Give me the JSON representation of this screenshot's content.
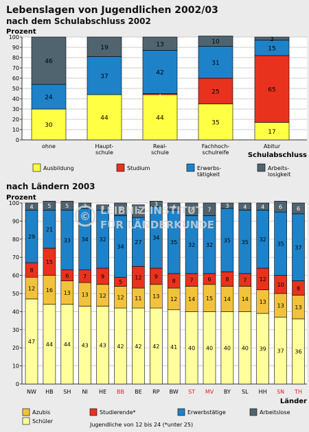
{
  "title": "Lebenslagen von Jugendlichen 2002/03",
  "subtitle1": "nach dem Schulabschluss 2002",
  "subtitle2": "nach Ländern 2003",
  "watermark": [
    "LEIBNIZ-INSTITUT",
    "FÜR LÄNDERKUNDE"
  ],
  "colors": {
    "ausbildung": "#ffff44",
    "studium": "#e8321e",
    "erwerb": "#1e82c8",
    "arbeitslos": "#506470",
    "azubis": "#f2c23c",
    "schueler": "#ffff9c",
    "red_label": "#e02020",
    "grid": "#bdbdbd"
  },
  "chart_data": [
    {
      "type": "bar",
      "stacked": true,
      "ylabel": "Prozent",
      "xlabel": "Schulabschluss",
      "ylim": [
        0,
        100
      ],
      "yticks": [
        0,
        10,
        20,
        30,
        40,
        50,
        60,
        70,
        80,
        90,
        100
      ],
      "categories": [
        "ohne",
        "Haupt-\nschule",
        "Real-\nschule",
        "Fachhoch-\nschulreife",
        "Abitur"
      ],
      "series": [
        {
          "name": "Ausbildung",
          "color_key": "ausbildung",
          "values": [
            30,
            44,
            44,
            35,
            17
          ],
          "labels": [
            "30",
            "44",
            "44",
            "35",
            "17"
          ]
        },
        {
          "name": "Studium",
          "color_key": "studium",
          "values": [
            0,
            0,
            1,
            25,
            65
          ],
          "labels": [
            "",
            "",
            "1",
            "25",
            "65"
          ]
        },
        {
          "name": "Erwerbs-\ntätigkeit",
          "color_key": "erwerb",
          "values": [
            24,
            37,
            42,
            31,
            15
          ],
          "labels": [
            "24",
            "37",
            "42",
            "31",
            "15"
          ]
        },
        {
          "name": "Arbeits-\nlosigkeit",
          "color_key": "arbeitslos",
          "values": [
            46,
            19,
            13,
            10,
            3
          ],
          "labels": [
            "46",
            "19",
            "13",
            "10",
            "3"
          ]
        }
      ],
      "legend_position": "bottom"
    },
    {
      "type": "bar",
      "stacked": true,
      "ylabel": "Prozent",
      "xlabel": "Länder",
      "ylim": [
        0,
        100
      ],
      "yticks": [
        0,
        10,
        20,
        30,
        40,
        50,
        60,
        70,
        80,
        90,
        100
      ],
      "categories": [
        "NW",
        "HB",
        "SH",
        "NI",
        "HE",
        "BB",
        "BE",
        "RP",
        "BW",
        "ST",
        "MV",
        "BY",
        "SL",
        "HH",
        "SN",
        "TH"
      ],
      "red_categories": [
        "BB",
        "ST",
        "MV",
        "SN",
        "TH"
      ],
      "series": [
        {
          "name": "Schüler",
          "color_key": "schueler",
          "values": [
            47,
            44,
            44,
            43,
            43,
            42,
            42,
            42,
            41,
            40,
            40,
            40,
            40,
            39,
            37,
            36
          ]
        },
        {
          "name": "Azubis",
          "color_key": "azubis",
          "values": [
            12,
            16,
            13,
            13,
            12,
            12,
            11,
            13,
            12,
            14,
            15,
            14,
            14,
            13,
            13,
            13
          ]
        },
        {
          "name": "Studierende*",
          "color_key": "studium",
          "values": [
            8,
            15,
            6,
            7,
            9,
            5,
            12,
            9,
            8,
            7,
            6,
            8,
            7,
            12,
            10,
            8
          ]
        },
        {
          "name": "Erwerbstätige",
          "color_key": "erwerb",
          "values": [
            29,
            21,
            33,
            34,
            32,
            34,
            27,
            34,
            35,
            32,
            32,
            35,
            35,
            32,
            35,
            37
          ]
        },
        {
          "name": "Arbeitslose",
          "color_key": "arbeitslos",
          "values": [
            4,
            5,
            5,
            3,
            3,
            7,
            7,
            3,
            4,
            7,
            7,
            3,
            4,
            4,
            6,
            6
          ]
        }
      ],
      "legend_position": "bottom",
      "note": "Jugendliche von 12 bis 24 (*unter 25)"
    }
  ]
}
